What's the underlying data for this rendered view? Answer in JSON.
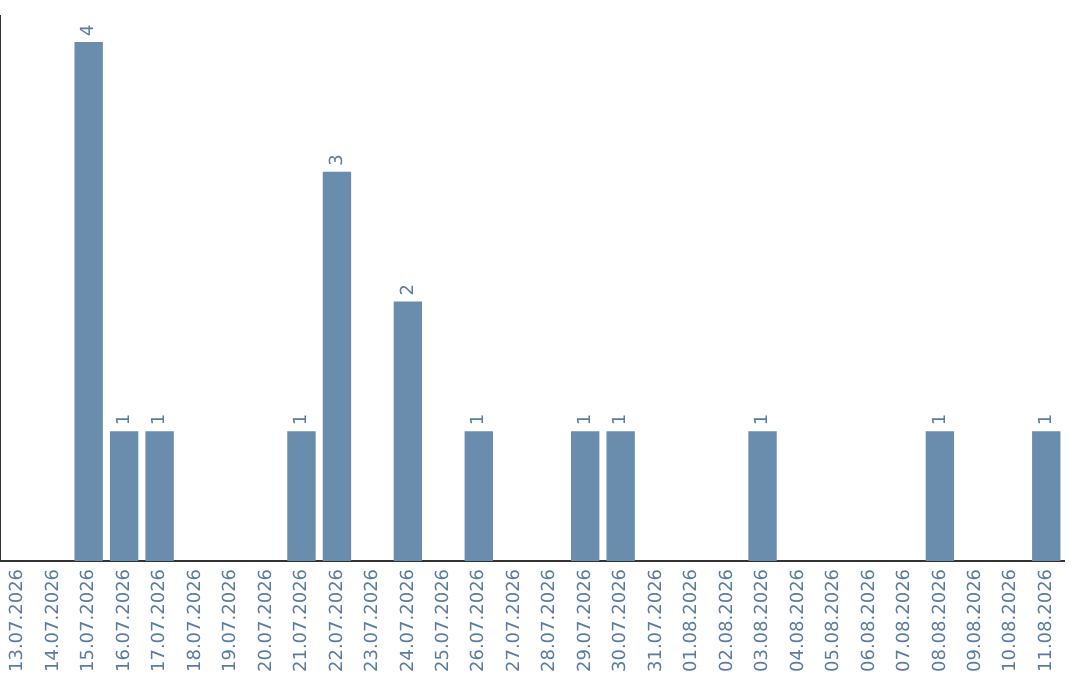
{
  "chart_data": {
    "type": "bar",
    "categories": [
      "13.07.2026",
      "14.07.2026",
      "15.07.2026",
      "16.07.2026",
      "17.07.2026",
      "18.07.2026",
      "19.07.2026",
      "20.07.2026",
      "21.07.2026",
      "22.07.2026",
      "23.07.2026",
      "24.07.2026",
      "25.07.2026",
      "26.07.2026",
      "27.07.2026",
      "28.07.2026",
      "29.07.2026",
      "30.07.2026",
      "31.07.2026",
      "01.08.2026",
      "02.08.2026",
      "03.08.2026",
      "04.08.2026",
      "05.08.2026",
      "06.08.2026",
      "07.08.2026",
      "08.08.2026",
      "09.08.2026",
      "10.08.2026",
      "11.08.2026"
    ],
    "values": [
      0,
      0,
      4,
      1,
      1,
      0,
      0,
      0,
      1,
      3,
      0,
      2,
      0,
      1,
      0,
      0,
      1,
      1,
      0,
      0,
      0,
      1,
      0,
      0,
      0,
      0,
      1,
      0,
      0,
      1
    ],
    "value_labels": [
      null,
      null,
      "4",
      "1",
      "1",
      null,
      null,
      null,
      "1",
      "3",
      null,
      "2",
      null,
      "1",
      null,
      null,
      "1",
      "1",
      null,
      null,
      null,
      "1",
      null,
      null,
      null,
      null,
      "1",
      null,
      null,
      "1"
    ],
    "color": "#6a8cad",
    "ylim": [
      0,
      4.2
    ],
    "tick_labels": "x",
    "grid": false,
    "legend": false
  }
}
